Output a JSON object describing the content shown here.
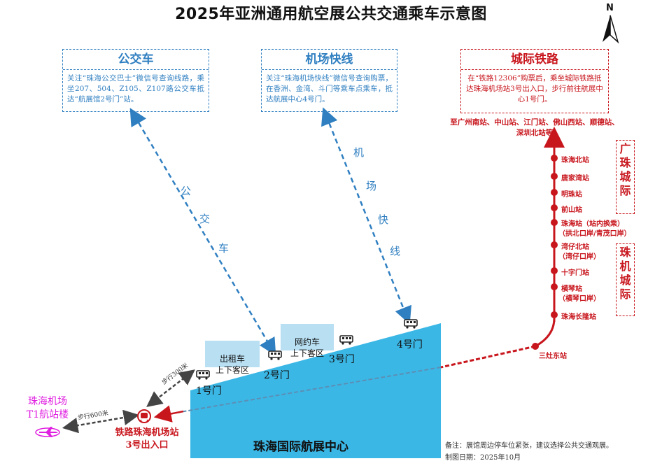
{
  "title": "2025年亚洲通用航空展公共交通乘车示意图",
  "north": "N",
  "bus": {
    "header": "公交车",
    "body": "关注“珠海公交巴士”微信号查询线路，乘坐207、504、Z105、Z107路公交车抵达“航展馆2号门”站。",
    "route_chars": [
      "公",
      "交",
      "车"
    ]
  },
  "airport_express": {
    "header": "机场快线",
    "body": "关注“珠海机场快线”微信号查询购票，在香洲、金湾、斗门等乘车点乘车，抵达航展中心4号门。",
    "route_chars": [
      "机",
      "场",
      "快",
      "线"
    ]
  },
  "intercity": {
    "header": "城际铁路",
    "body": "在“铁路12306”购票后，乘坐城际铁路抵达珠海机场站3号出入口，步行前往航展中心1号门。",
    "destinations": "至广州南站、中山站、江门站、佛山西站、顺德站、深圳北站等"
  },
  "line_labels": {
    "guangzhu": "广珠城际",
    "zhuji": "珠机城际"
  },
  "stations": [
    {
      "name": "珠海北站",
      "sub": ""
    },
    {
      "name": "唐家湾站",
      "sub": ""
    },
    {
      "name": "明珠站",
      "sub": ""
    },
    {
      "name": "前山站",
      "sub": ""
    },
    {
      "name": "珠海站（站内换乘）",
      "sub": "（拱北口岸/青茂口岸）"
    },
    {
      "name": "湾仔北站",
      "sub": "（湾仔口岸）"
    },
    {
      "name": "十字门站",
      "sub": ""
    },
    {
      "name": "横琴站",
      "sub": "（横琴口岸）"
    },
    {
      "name": "珠海长隆站",
      "sub": ""
    }
  ],
  "sanzao": "三灶东站",
  "gates": {
    "g1": "1号门",
    "g2": "2号门",
    "g3": "3号门",
    "g4": "4号门"
  },
  "zones": {
    "taxi": "出租车\n上下客区",
    "ride_hailing": "网约车\n上下客区"
  },
  "center_name": "珠海国际航展中心",
  "walks": {
    "w300": "步行300米",
    "w600": "步行600米"
  },
  "t1": {
    "line1": "珠海机场",
    "line2": "T1航站楼"
  },
  "rail_station": {
    "line1": "铁路珠海机场站",
    "line2": "3号出入口"
  },
  "notes": {
    "remark": "备注：展馆周边停车位紧张，建议选择公共交通观展。",
    "date": "制图日期：2025年10月"
  },
  "colors": {
    "blue": "#2f7fc1",
    "red": "#c8161d",
    "venue": "#3bb7e6",
    "zone": "#b8dff2",
    "magenta": "#e020e0"
  }
}
